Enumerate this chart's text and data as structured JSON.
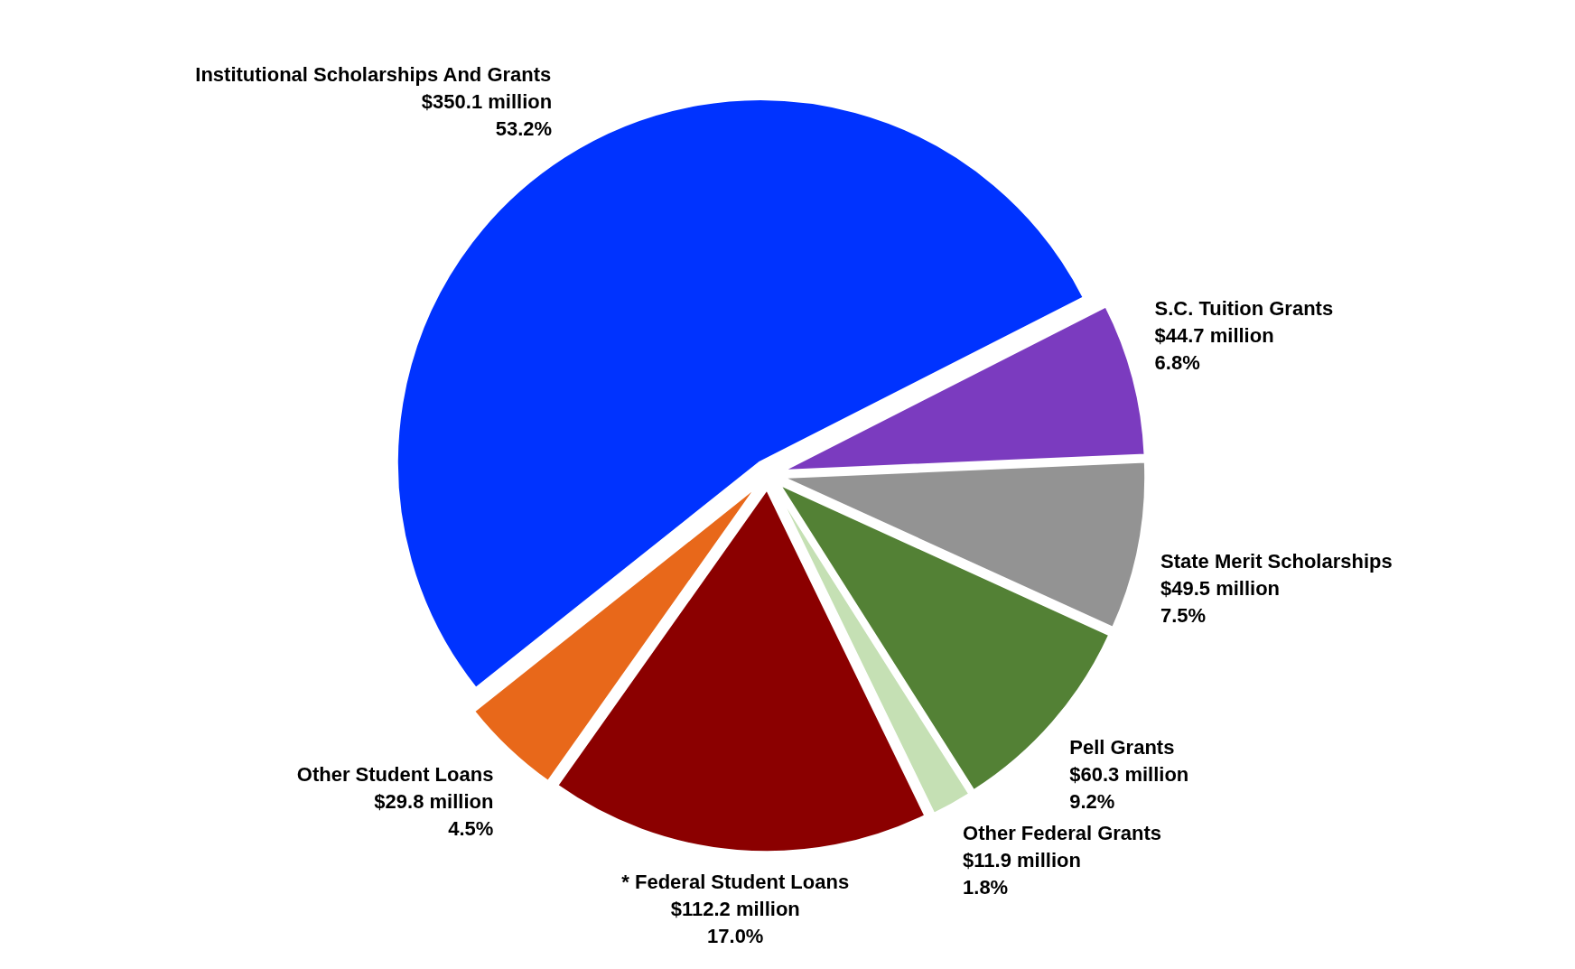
{
  "chart_data": {
    "type": "pie",
    "categories": [
      "Institutional Scholarships And Grants",
      "S.C. Tuition Grants",
      "State Merit Scholarships",
      "Pell Grants",
      "Other Federal Grants",
      "* Federal Student Loans",
      "Other Student Loans"
    ],
    "values": [
      53.2,
      6.8,
      7.5,
      9.2,
      1.8,
      17.0,
      4.5
    ],
    "value_labels": [
      "$350.1 million\n53.2%",
      "$44.7 million\n6.8%",
      "$49.5 million\n7.5%",
      "$60.3 million\n9.2%",
      "$11.9 million\n1.8%",
      "$112.2 million\n17.0%",
      "$29.8 million\n4.5%"
    ],
    "colors": [
      "#0033ff",
      "#7b3bbf",
      "#939393",
      "#538135",
      "#c5e0b4",
      "#8b0000",
      "#e8681a"
    ]
  }
}
